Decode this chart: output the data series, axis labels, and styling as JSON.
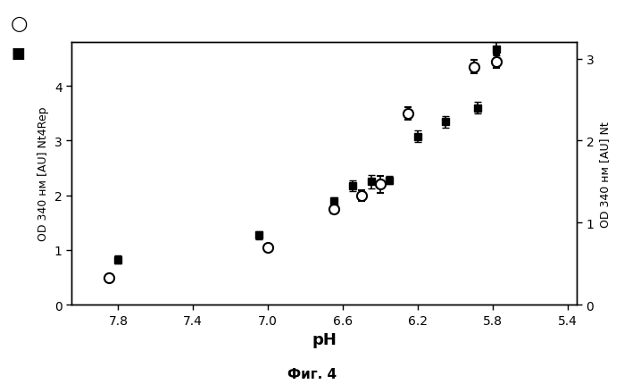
{
  "title": "",
  "xlabel": "pH",
  "ylabel_left": "OD 340 нм [AU] Nt4Rep",
  "ylabel_right": "OD 340 нм [AU] Nt",
  "caption": "Фиг. 4",
  "xlim": [
    8.05,
    5.35
  ],
  "ylim_left": [
    0,
    4.8
  ],
  "ylim_right": [
    0,
    3.2
  ],
  "yticks_left": [
    0,
    1,
    2,
    3,
    4
  ],
  "yticks_right": [
    0,
    1,
    2,
    3
  ],
  "xticks": [
    7.8,
    7.4,
    7.0,
    6.6,
    6.2,
    5.8,
    5.4
  ],
  "circle_data": {
    "x": [
      7.85,
      7.0,
      6.65,
      6.5,
      6.4,
      6.25,
      5.9,
      5.78
    ],
    "y": [
      0.5,
      1.05,
      1.75,
      2.0,
      2.2,
      3.5,
      4.35,
      4.45
    ],
    "yerr": [
      0.0,
      0.05,
      0.08,
      0.1,
      0.15,
      0.12,
      0.12,
      0.12
    ]
  },
  "square_data": {
    "x": [
      7.8,
      7.05,
      6.65,
      6.55,
      6.45,
      6.35,
      6.2,
      6.05,
      5.88,
      5.78
    ],
    "y": [
      0.55,
      0.85,
      1.27,
      1.45,
      1.5,
      1.52,
      2.05,
      2.23,
      2.4,
      3.12
    ],
    "yerr": [
      0.05,
      0.05,
      0.04,
      0.06,
      0.08,
      0.05,
      0.07,
      0.07,
      0.07,
      0.08
    ]
  },
  "circle_color": "#000000",
  "square_color": "#000000",
  "background_color": "#ffffff"
}
